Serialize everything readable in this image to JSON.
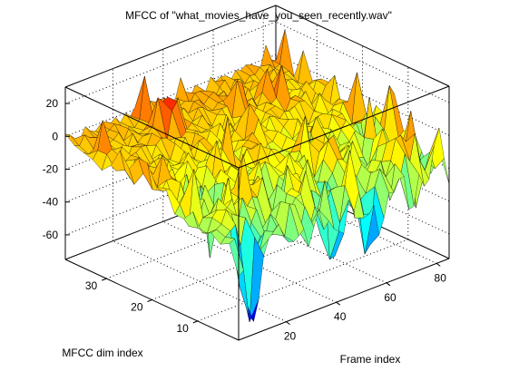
{
  "chart_data": {
    "type": "surface",
    "title": "MFCC of \"what_movies_have_you_seen_recently.wav\"",
    "xlabel": "Frame index",
    "ylabel": "MFCC dim index",
    "zlabel": "",
    "x_range": [
      1,
      85
    ],
    "y_range": [
      1,
      39
    ],
    "zlim": [
      -75,
      30
    ],
    "x_ticks": [
      "20",
      "40",
      "60",
      "80"
    ],
    "y_ticks": [
      "10",
      "20",
      "30"
    ],
    "z_ticks": [
      "20",
      "0",
      "-20",
      "-40",
      "-60"
    ],
    "x_tick_values": [
      20,
      40,
      60,
      80
    ],
    "y_tick_values": [
      10,
      20,
      30
    ],
    "z_tick_values": [
      20,
      0,
      -20,
      -40,
      -60
    ],
    "colormap": "jet",
    "grid": true,
    "surface_description": "High MFCC dims near 0 to +20; low MFCC dims show deep negative dips down to about -70",
    "deep_dips": [
      {
        "frame": 6,
        "dim": 1,
        "value": -70
      },
      {
        "frame": 9,
        "dim": 2,
        "value": -68
      },
      {
        "frame": 14,
        "dim": 5,
        "value": -45
      },
      {
        "frame": 42,
        "dim": 4,
        "value": -62
      },
      {
        "frame": 56,
        "dim": 3,
        "value": -55
      },
      {
        "frame": 48,
        "dim": 9,
        "value": -48
      },
      {
        "frame": 34,
        "dim": 12,
        "value": -40
      }
    ],
    "peaks": [
      {
        "frame": 72,
        "dim": 5,
        "value": 18
      },
      {
        "frame": 76,
        "dim": 4,
        "value": 20
      },
      {
        "frame": 30,
        "dim": 32,
        "value": 22
      }
    ]
  }
}
